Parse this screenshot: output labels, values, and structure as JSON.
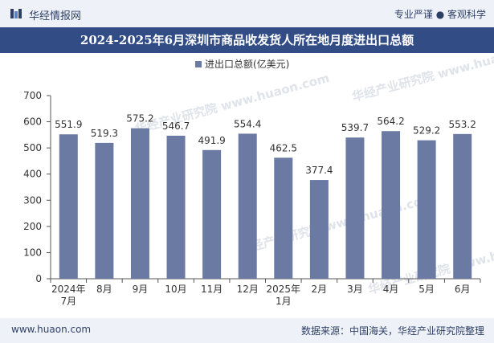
{
  "header": {
    "brand": "华经情报网",
    "tagline": "专业严谨 ● 客观科学"
  },
  "title": "2024-2025年6月深圳市商品收发货人所在地月度进出口总额",
  "footer": {
    "website": "www.huaon.com",
    "source": "数据来源：中国海关，华经产业研究院整理"
  },
  "watermark": "华经产业研究院 www.huaon.com",
  "chart_data": {
    "type": "bar",
    "categories": [
      "2024年\n7月",
      "8月",
      "9月",
      "10月",
      "11月",
      "12月",
      "2025年\n1月",
      "2月",
      "3月",
      "4月",
      "5月",
      "6月"
    ],
    "series": [
      {
        "name": "进出口总额(亿美元)",
        "values": [
          551.9,
          519.3,
          575.2,
          546.7,
          491.9,
          554.4,
          462.5,
          377.4,
          539.7,
          564.2,
          529.2,
          553.2
        ]
      }
    ],
    "ylim": [
      0,
      700
    ],
    "yticks": [
      0,
      100,
      200,
      300,
      400,
      500,
      600,
      700
    ],
    "legend": "top-center",
    "grid": false,
    "colors": {
      "bar": "#6a7aa3",
      "titlebar": "#324d86"
    }
  }
}
